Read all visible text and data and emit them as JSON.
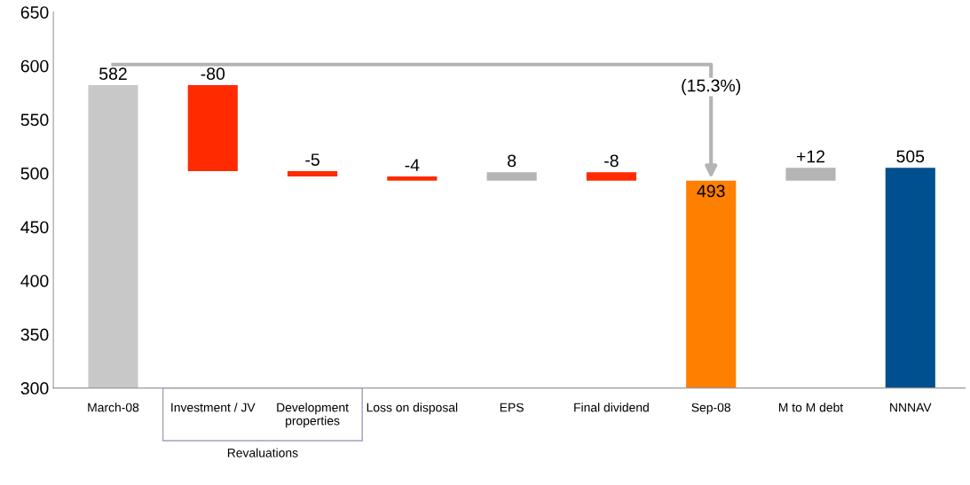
{
  "chart_data": {
    "type": "bar",
    "categories": [
      "March-08",
      "Investment / JV",
      "Development\nproperties",
      "Loss on disposal",
      "EPS",
      "Final dividend",
      "Sep-08",
      "M to M debt",
      "NNNAV"
    ],
    "values": [
      582,
      -80,
      -5,
      -4,
      8,
      -8,
      493,
      12,
      505
    ],
    "base": [
      0,
      582,
      502,
      497,
      493,
      501,
      0,
      493,
      0
    ],
    "colors": [
      "#c8c8c8",
      "#ff2a00",
      "#ff2a00",
      "#ff2a00",
      "#b4b4b4",
      "#ff2a00",
      "#ff7f00",
      "#b4b4b4",
      "#00508f"
    ],
    "value_labels": [
      "582",
      "-80",
      "-5",
      "-4",
      "8",
      "-8",
      "493",
      "+12",
      "505"
    ],
    "ylim": [
      300,
      650
    ],
    "yticks": [
      300,
      350,
      400,
      450,
      500,
      550,
      600,
      650
    ],
    "annotations": [
      "(15.3%)",
      "Revaluations"
    ]
  }
}
